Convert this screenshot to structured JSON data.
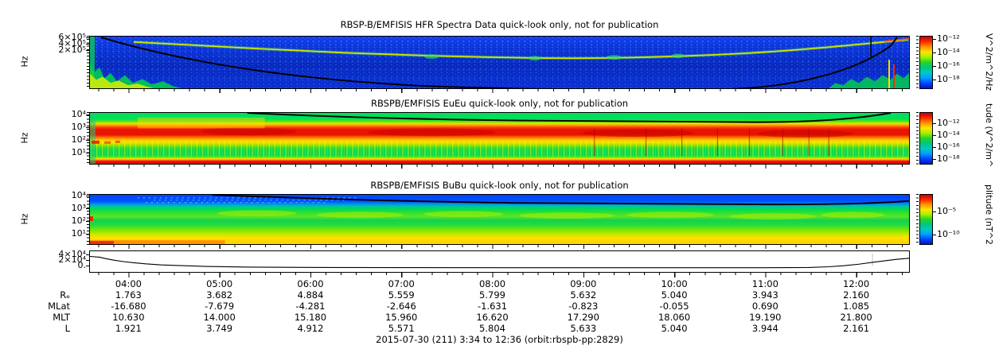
{
  "colors": {
    "colorbar": [
      "#c80000",
      "#ff2a00",
      "#ff9600",
      "#ffe600",
      "#a0f000",
      "#28d228",
      "#00c87d",
      "#00c8c8",
      "#00a0ff",
      "#0046ff",
      "#0014d2"
    ],
    "spectrogram_background_p1": "#0a30d4",
    "frame": "#000000"
  },
  "panels": {
    "hfr": {
      "title": "RBSP-B/EMFISIS  HFR Spectra Data quick-look only, not for publication",
      "ylabel": "Hz",
      "yticks": [
        "6×10⁵",
        "4×10⁵",
        "2×10⁵"
      ],
      "cbar_ticks": [
        "10⁻¹²",
        "10⁻¹⁴",
        "10⁻¹⁶",
        "10⁻¹⁸"
      ],
      "cbar_label": "V^2/m^2/Hz"
    },
    "euu": {
      "title": "RBSPB/EMFISIS  EuEu quick-look only, not for publication",
      "ylabel": "Hz",
      "yticks": [
        "10⁴",
        "10³",
        "10²",
        "10¹"
      ],
      "cbar_ticks": [
        "10⁻¹²",
        "10⁻¹⁴",
        "10⁻¹⁶",
        "10⁻¹⁸"
      ],
      "cbar_label": "tude (V^2/m^"
    },
    "buu": {
      "title": "RBSPB/EMFISIS  BuBu quick-look only, not for publication",
      "ylabel": "Hz",
      "yticks": [
        "10⁴",
        "10³",
        "10²",
        "10¹"
      ],
      "cbar_ticks": [
        "10⁻⁵",
        "10⁻¹⁰"
      ],
      "cbar_label": "plitude (nT^2"
    },
    "aux": {
      "yticks": [
        "4×10⁴",
        "2×10⁴",
        "0."
      ]
    }
  },
  "ephemeris": {
    "times": [
      "04:00",
      "05:00",
      "06:00",
      "07:00",
      "08:00",
      "09:00",
      "10:00",
      "11:00",
      "12:00"
    ],
    "rows": [
      {
        "label": "Rₑ",
        "values": [
          "1.763",
          "3.682",
          "4.884",
          "5.559",
          "5.799",
          "5.632",
          "5.040",
          "3.943",
          "2.160"
        ]
      },
      {
        "label": "MLat",
        "values": [
          "-16.680",
          "-7.679",
          "-4.281",
          "-2.646",
          "-1.631",
          "-0.823",
          "-0.055",
          "0.690",
          "1.085"
        ]
      },
      {
        "label": "MLT",
        "values": [
          "10.630",
          "14.000",
          "15.180",
          "15.960",
          "16.620",
          "17.290",
          "18.060",
          "19.190",
          "21.800"
        ]
      },
      {
        "label": "L",
        "values": [
          "1.921",
          "3.749",
          "4.912",
          "5.571",
          "5.804",
          "5.633",
          "5.040",
          "3.944",
          "2.161"
        ]
      }
    ]
  },
  "caption": "2015-07-30 (211) 3:34 to 12:36 (orbit:rbspb-pp:2829)",
  "chart_data": [
    {
      "type": "heatmap",
      "title": "RBSP-B/EMFISIS  HFR Spectra Data quick-look only, not for publication",
      "ylabel": "Hz",
      "yscale": "log",
      "ytick_labels": [
        "2×10⁵",
        "4×10⁵",
        "6×10⁵"
      ],
      "x_range": [
        "03:34",
        "12:36"
      ],
      "colorbar": {
        "label": "V^2/m^2/Hz",
        "tick_labels": [
          "10⁻¹²",
          "10⁻¹⁴",
          "10⁻¹⁶",
          "10⁻¹⁸"
        ],
        "position": "right"
      },
      "features": [
        "deep-blue background near 10⁻¹⁷..10⁻¹⁸ V^2/m^2/Hz with faint cyan speckle banding",
        "narrowband upper-hybrid emission line descending from ~4×10⁵ Hz at 04:00 to ~1.5×10⁵ Hz near apogee (07:00-09:00), rising again toward 12:30",
        "black fce trace: U-shape dipping from panel top near 03:45 to the bottom edge around 08:00 and returning to top near 12:20; thin vertical black spike near 12:10",
        "broadband green/yellow/red perigee noise at low frequency before ~04:30 and after ~12:00"
      ]
    },
    {
      "type": "heatmap",
      "title": "RBSPB/EMFISIS  EuEu quick-look only, not for publication",
      "ylabel": "Hz",
      "yscale": "log",
      "ytick_labels": [
        "10¹",
        "10²",
        "10³",
        "10⁴"
      ],
      "x_range": [
        "03:34",
        "12:36"
      ],
      "colorbar": {
        "label": "tude (V^2/m^",
        "label_clipped": true,
        "tick_labels": [
          "10⁻¹²",
          "10⁻¹⁴",
          "10⁻¹⁶",
          "10⁻¹⁸"
        ],
        "position": "right"
      },
      "features": [
        "intense red band (~10⁻¹²) between roughly 2×10² and 2×10³ Hz persisting across the whole pass",
        "solid red band along the bottom edge below ~10 Hz",
        "green ~10⁻¹⁵ background with dense yellow vertical bursts below the red band",
        "scattered dark-red vertical lines between ~08:30 and 11:30",
        "black fce trace entering from panel top near 05:15, running just below 10⁴ Hz, returning to top near 12:15"
      ]
    },
    {
      "type": "heatmap",
      "title": "RBSPB/EMFISIS  BuBu quick-look only, not for publication",
      "ylabel": "Hz",
      "yscale": "log",
      "ytick_labels": [
        "10¹",
        "10²",
        "10³",
        "10⁴"
      ],
      "x_range": [
        "03:34",
        "12:36"
      ],
      "colorbar": {
        "label": "plitude (nT^2",
        "label_clipped": true,
        "tick_labels": [
          "10⁻⁵",
          "10⁻¹⁰"
        ],
        "position": "right"
      },
      "features": [
        "weak blue band above ~3×10³ Hz with cyan speckle near 04:00-06:00",
        "green band between ~10² and 10³ Hz with yellow-green enhancements",
        "strong yellow band below ~30 Hz across the whole pass",
        "orange/red patch at the bottom-left (perigee) edge",
        "black fce trace entering from panel top near 04:55 and running just below 10⁴ Hz to the right edge"
      ]
    },
    {
      "type": "line",
      "name": "auxiliary frequency trace (linear scale)",
      "ytick_labels": [
        "0.",
        "2×10⁴",
        "4×10⁴"
      ],
      "ylim": [
        0,
        45000
      ],
      "x": [
        "03:34",
        "04:00",
        "04:30",
        "05:00",
        "06:00",
        "07:00",
        "08:00",
        "09:00",
        "10:00",
        "11:00",
        "11:45",
        "12:15",
        "12:36"
      ],
      "values": [
        30000,
        17000,
        9000,
        6500,
        5500,
        5000,
        4800,
        5000,
        5500,
        7000,
        10000,
        20000,
        28000
      ]
    },
    {
      "type": "table",
      "columns": [
        "04:00",
        "05:00",
        "06:00",
        "07:00",
        "08:00",
        "09:00",
        "10:00",
        "11:00",
        "12:00"
      ],
      "rows": [
        {
          "label": "Rₑ",
          "values": [
            1.763,
            3.682,
            4.884,
            5.559,
            5.799,
            5.632,
            5.04,
            3.943,
            2.16
          ]
        },
        {
          "label": "MLat",
          "values": [
            -16.68,
            -7.679,
            -4.281,
            -2.646,
            -1.631,
            -0.823,
            -0.055,
            0.69,
            1.085
          ]
        },
        {
          "label": "MLT",
          "values": [
            10.63,
            14.0,
            15.18,
            15.96,
            16.62,
            17.29,
            18.06,
            19.19,
            21.8
          ]
        },
        {
          "label": "L",
          "values": [
            1.921,
            3.749,
            4.912,
            5.571,
            5.804,
            5.633,
            5.04,
            3.944,
            2.161
          ]
        }
      ]
    }
  ]
}
